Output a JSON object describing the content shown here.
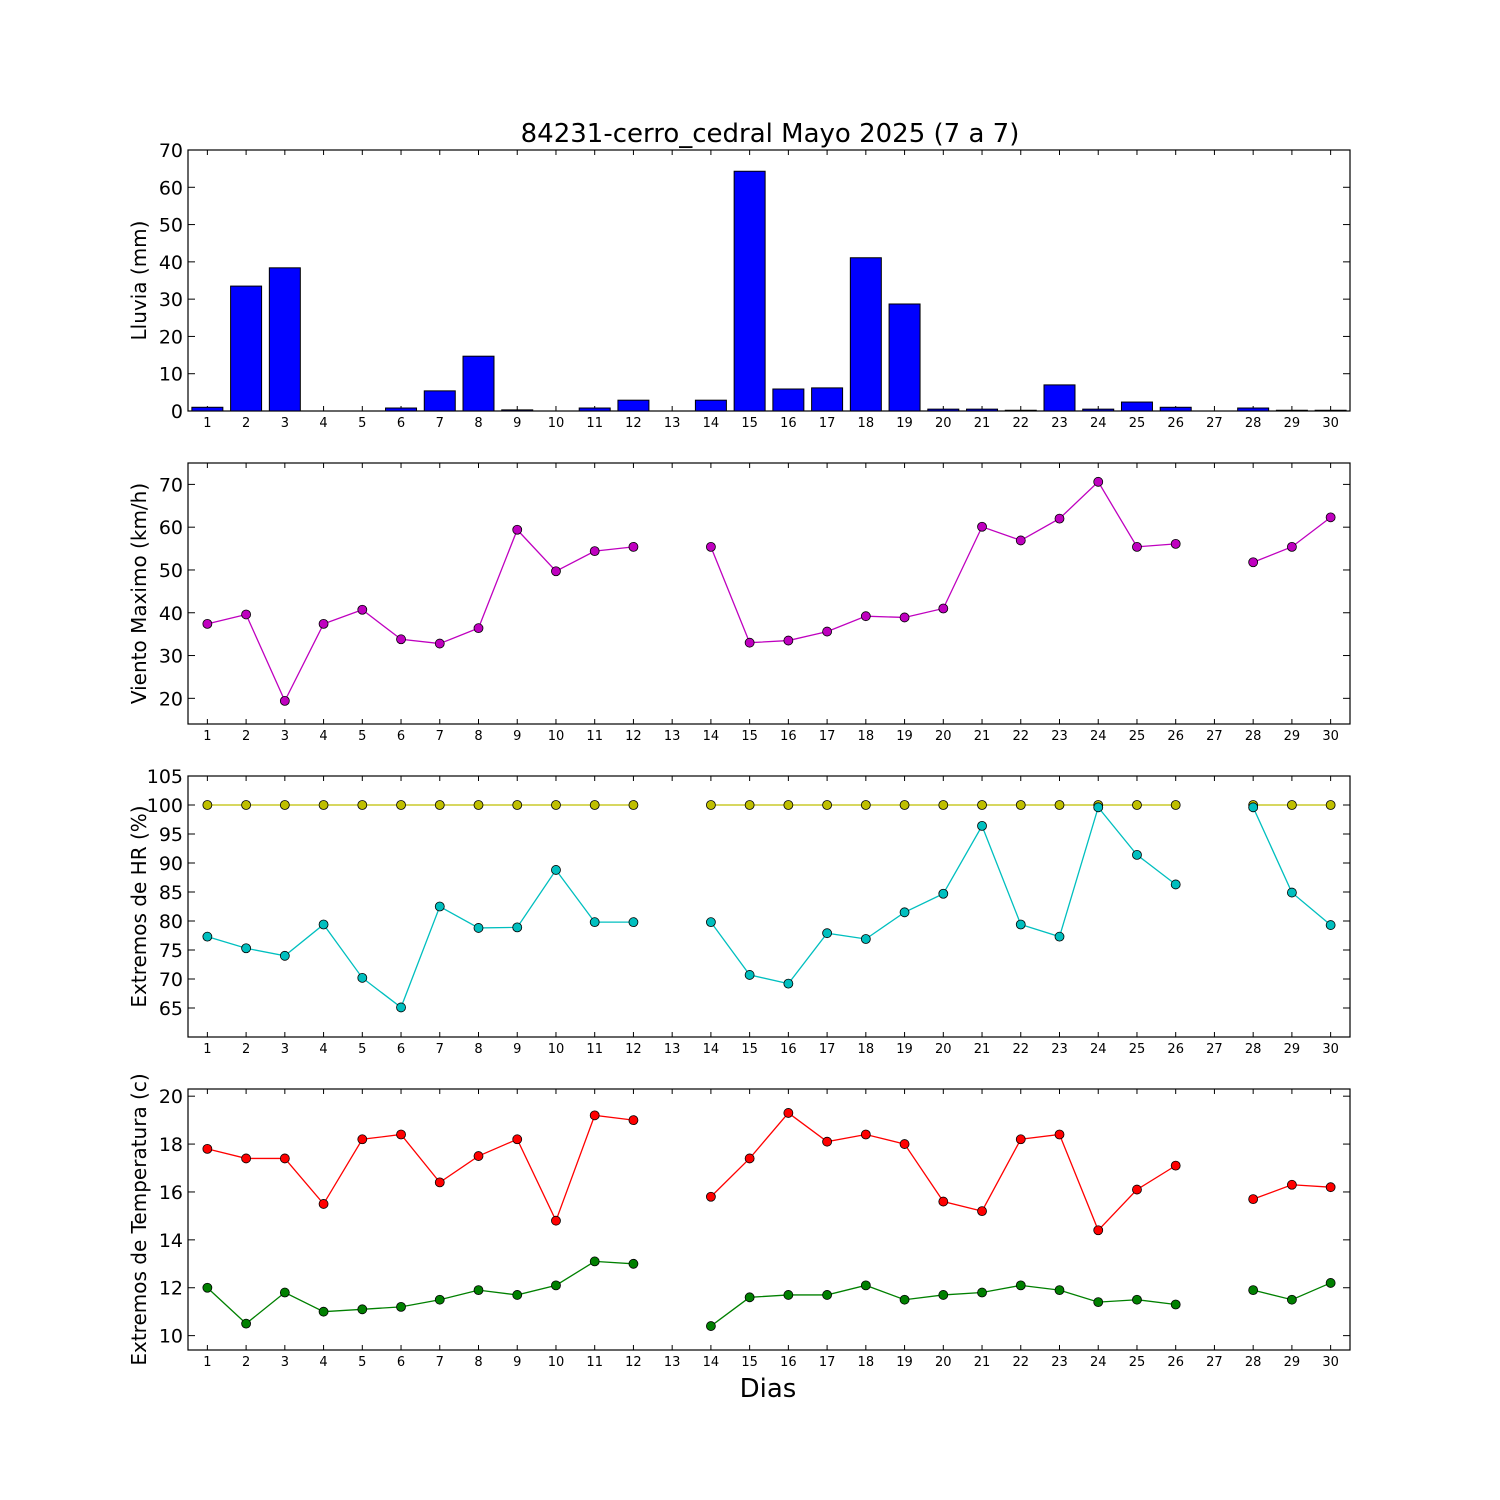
{
  "figure": {
    "title": "84231-cerro_cedral Mayo 2025  (7 a 7)",
    "xlabel": "Dias"
  },
  "chart_data": [
    {
      "type": "bar",
      "ylabel": "Lluvia (mm)",
      "ylim": [
        0,
        70
      ],
      "yticks": [
        0,
        10,
        20,
        30,
        40,
        50,
        60,
        70
      ],
      "x": [
        1,
        2,
        3,
        4,
        5,
        6,
        7,
        8,
        9,
        10,
        11,
        12,
        13,
        14,
        15,
        16,
        17,
        18,
        19,
        20,
        21,
        22,
        23,
        24,
        25,
        26,
        27,
        28,
        29,
        30
      ],
      "series": [
        {
          "color": "#0000ff",
          "values": [
            1.0,
            33.5,
            38.4,
            0,
            0,
            0.8,
            5.4,
            14.7,
            0.3,
            0,
            0.8,
            2.9,
            0,
            2.9,
            64.3,
            5.9,
            6.2,
            41.1,
            28.7,
            0.5,
            0.5,
            0.2,
            7.0,
            0.5,
            2.4,
            1.0,
            0,
            0.8,
            0.2,
            0.2
          ]
        }
      ]
    },
    {
      "type": "line",
      "ylabel": "Viento Maximo (km/h)",
      "ylim": [
        14,
        75
      ],
      "yticks": [
        20,
        30,
        40,
        50,
        60,
        70
      ],
      "x": [
        1,
        2,
        3,
        4,
        5,
        6,
        7,
        8,
        9,
        10,
        11,
        12,
        13,
        14,
        15,
        16,
        17,
        18,
        19,
        20,
        21,
        22,
        23,
        24,
        25,
        26,
        27,
        28,
        29,
        30
      ],
      "series": [
        {
          "color": "#bf00bf",
          "values": [
            37.4,
            39.6,
            19.4,
            37.4,
            40.7,
            33.8,
            32.8,
            36.4,
            59.4,
            49.7,
            54.4,
            55.4,
            null,
            55.4,
            33.0,
            33.5,
            35.6,
            39.2,
            38.9,
            41.0,
            60.1,
            56.9,
            62.0,
            70.6,
            55.4,
            56.1,
            null,
            51.8,
            55.4,
            62.3
          ]
        }
      ]
    },
    {
      "type": "line",
      "ylabel": "Extremos de HR (%)",
      "ylim": [
        60,
        105
      ],
      "yticks": [
        65,
        70,
        75,
        80,
        85,
        90,
        95,
        100,
        105
      ],
      "x": [
        1,
        2,
        3,
        4,
        5,
        6,
        7,
        8,
        9,
        10,
        11,
        12,
        13,
        14,
        15,
        16,
        17,
        18,
        19,
        20,
        21,
        22,
        23,
        24,
        25,
        26,
        27,
        28,
        29,
        30
      ],
      "series": [
        {
          "color": "#bfbf00",
          "values": [
            100,
            100,
            100,
            100,
            100,
            100,
            100,
            100,
            100,
            100,
            100,
            100,
            null,
            100,
            100,
            100,
            100,
            100,
            100,
            100,
            100,
            100,
            100,
            100,
            100,
            100,
            null,
            100,
            100,
            100
          ]
        },
        {
          "color": "#00bfbf",
          "values": [
            77.3,
            75.3,
            74.0,
            79.4,
            70.2,
            65.1,
            82.5,
            78.8,
            78.9,
            88.8,
            79.8,
            79.8,
            null,
            79.8,
            70.7,
            69.2,
            77.9,
            76.9,
            81.5,
            84.7,
            96.4,
            79.4,
            77.3,
            99.6,
            91.4,
            86.3,
            null,
            99.6,
            84.9,
            79.3
          ]
        }
      ]
    },
    {
      "type": "line",
      "ylabel": "Extremos de Temperatura (c)",
      "ylim": [
        9.4,
        20.3
      ],
      "yticks": [
        10,
        12,
        14,
        16,
        18,
        20
      ],
      "x": [
        1,
        2,
        3,
        4,
        5,
        6,
        7,
        8,
        9,
        10,
        11,
        12,
        13,
        14,
        15,
        16,
        17,
        18,
        19,
        20,
        21,
        22,
        23,
        24,
        25,
        26,
        27,
        28,
        29,
        30
      ],
      "series": [
        {
          "color": "#ff0000",
          "values": [
            17.8,
            17.4,
            17.4,
            15.5,
            18.2,
            18.4,
            16.4,
            17.5,
            18.2,
            14.8,
            19.2,
            19.0,
            null,
            15.8,
            17.4,
            19.3,
            18.1,
            18.4,
            18.0,
            15.6,
            15.2,
            18.2,
            18.4,
            14.4,
            16.1,
            17.1,
            null,
            15.7,
            16.3,
            16.2
          ]
        },
        {
          "color": "#008000",
          "values": [
            12.0,
            10.5,
            11.8,
            11.0,
            11.1,
            11.2,
            11.5,
            11.9,
            11.7,
            12.1,
            13.1,
            13.0,
            null,
            10.4,
            11.6,
            11.7,
            11.7,
            12.1,
            11.5,
            11.7,
            11.8,
            12.1,
            11.9,
            11.4,
            11.5,
            11.3,
            null,
            11.9,
            11.5,
            12.2
          ]
        }
      ]
    }
  ]
}
